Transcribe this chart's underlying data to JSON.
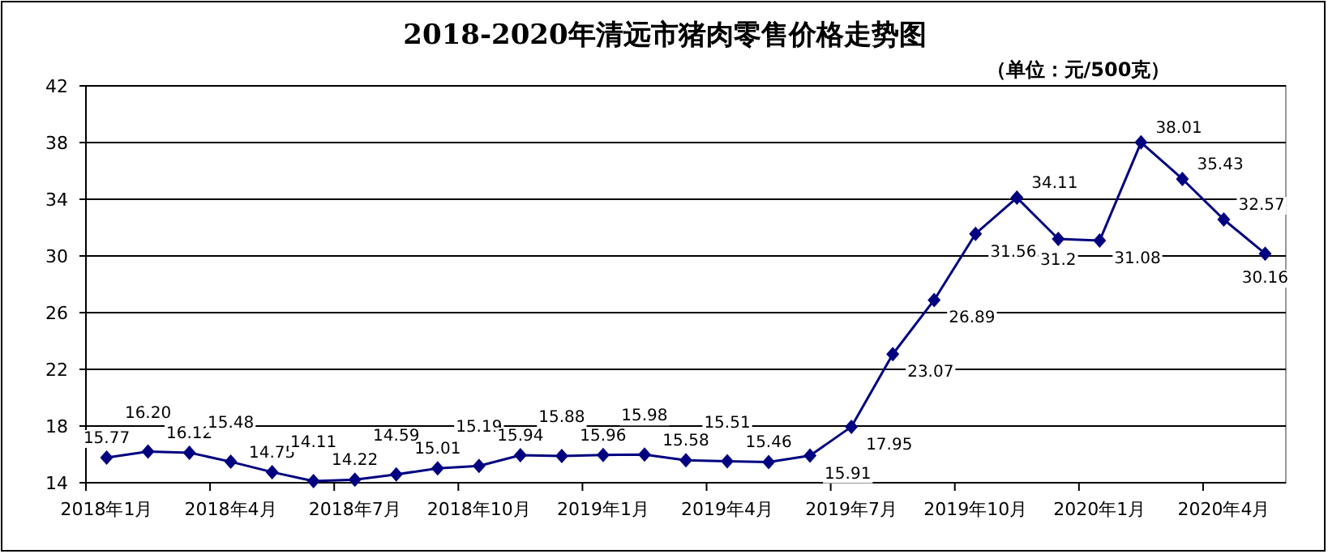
{
  "chart_data": {
    "type": "line",
    "title": "2018-2020年清远市猪肉零售价格走势图",
    "subtitle": "（单位：元/500克）",
    "categories": [
      "2018年1月",
      null,
      null,
      "2018年4月",
      null,
      null,
      "2018年7月",
      null,
      null,
      "2018年10月",
      null,
      null,
      "2019年1月",
      null,
      null,
      "2019年4月",
      null,
      null,
      "2019年7月",
      null,
      null,
      "2019年10月",
      null,
      null,
      "2020年1月",
      null,
      null,
      "2020年4月",
      null
    ],
    "values": [
      15.77,
      16.2,
      16.12,
      15.48,
      14.75,
      14.11,
      14.22,
      14.59,
      15.01,
      15.19,
      15.94,
      15.88,
      15.96,
      15.98,
      15.58,
      15.51,
      15.46,
      15.91,
      17.95,
      23.07,
      26.89,
      31.56,
      34.11,
      31.2,
      31.08,
      38.01,
      35.43,
      32.57,
      30.16
    ],
    "value_labels": [
      "15.77",
      "16.20",
      "16.12",
      "15.48",
      "14.75",
      "14.11",
      "14.22",
      "14.59",
      "15.01",
      "15.19",
      "15.94",
      "15.88",
      "15.96",
      "15.98",
      "15.58",
      "15.51",
      "15.46",
      "15.91",
      "17.95",
      "23.07",
      "26.89",
      "31.56",
      "34.11",
      "31.2",
      "31.08",
      "38.01",
      "35.43",
      "32.57",
      "30.16"
    ],
    "color": "#000080",
    "marker": "diamond",
    "line_style": "solid",
    "grid": "y",
    "ylim": [
      14,
      42
    ],
    "yticks": [
      14,
      18,
      22,
      26,
      30,
      34,
      38,
      42
    ]
  }
}
